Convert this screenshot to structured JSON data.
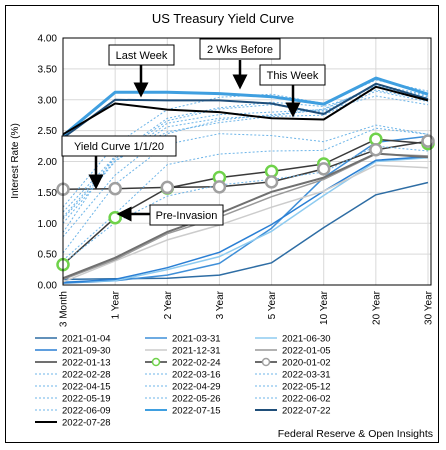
{
  "chart_data": {
    "type": "line",
    "title": "US Treasury Yield Curve",
    "xlabel": "",
    "ylabel": "Interest Rate (%)",
    "categories": [
      "3 Month",
      "1 Year",
      "2 Year",
      "3 Year",
      "5 Year",
      "10 Year",
      "20 Year",
      "30 Year"
    ],
    "ylim": [
      0,
      4
    ],
    "yticks": [
      "0.00",
      "0.50",
      "1.00",
      "1.50",
      "2.00",
      "2.50",
      "3.00",
      "3.50",
      "4.00"
    ],
    "grid": true,
    "legend": "bottom",
    "source": "Federal Reserve & Open Insights",
    "series": [
      {
        "name": "2021-01-04",
        "color": "#2e6da4",
        "style": "solid",
        "width": 1.5,
        "values": [
          0.09,
          0.1,
          0.11,
          0.16,
          0.36,
          0.93,
          1.46,
          1.66
        ]
      },
      {
        "name": "2021-03-31",
        "color": "#3f8fd8",
        "style": "solid",
        "width": 1.5,
        "values": [
          0.03,
          0.07,
          0.16,
          0.35,
          0.92,
          1.74,
          2.31,
          2.41
        ]
      },
      {
        "name": "2021-06-30",
        "color": "#8ecbf0",
        "style": "solid",
        "width": 1.5,
        "values": [
          0.05,
          0.07,
          0.25,
          0.46,
          0.87,
          1.45,
          2.0,
          2.06
        ]
      },
      {
        "name": "2021-09-30",
        "color": "#2a7fd4",
        "style": "solid",
        "width": 1.5,
        "values": [
          0.04,
          0.09,
          0.28,
          0.53,
          0.98,
          1.52,
          2.02,
          2.08
        ]
      },
      {
        "name": "2021-12-31",
        "color": "#cccccc",
        "style": "solid",
        "width": 1.5,
        "values": [
          0.05,
          0.39,
          0.73,
          0.97,
          1.26,
          1.52,
          1.94,
          1.9
        ]
      },
      {
        "name": "2022-01-05",
        "color": "#999999",
        "style": "solid",
        "width": 1.5,
        "values": [
          0.09,
          0.41,
          0.83,
          1.1,
          1.43,
          1.71,
          2.12,
          2.09
        ]
      },
      {
        "name": "2022-01-13",
        "color": "#707070",
        "style": "solid",
        "width": 2,
        "values": [
          0.11,
          0.44,
          0.86,
          1.16,
          1.51,
          1.74,
          2.13,
          2.07
        ]
      },
      {
        "name": "2022-02-24",
        "color": "#3a3a3a",
        "style": "solid",
        "width": 1.5,
        "marker": "circle-green",
        "values": [
          0.33,
          1.09,
          1.57,
          1.74,
          1.84,
          1.96,
          2.36,
          2.29
        ]
      },
      {
        "name": "2020-01-02",
        "color": "#3a3a3a",
        "style": "solid",
        "width": 1.5,
        "marker": "circle-grey",
        "values": [
          1.55,
          1.56,
          1.58,
          1.59,
          1.67,
          1.88,
          2.19,
          2.33
        ]
      },
      {
        "name": "2022-02-28",
        "color": "#6cb4e8",
        "style": "dotted",
        "width": 1,
        "values": [
          0.35,
          1.01,
          1.44,
          1.62,
          1.71,
          1.83,
          2.25,
          2.17
        ]
      },
      {
        "name": "2022-03-16",
        "color": "#6cb4e8",
        "style": "dotted",
        "width": 1,
        "values": [
          0.4,
          1.15,
          1.95,
          2.12,
          2.17,
          2.18,
          2.54,
          2.44
        ]
      },
      {
        "name": "2022-03-31",
        "color": "#6cb4e8",
        "style": "dotted",
        "width": 1,
        "values": [
          0.52,
          1.63,
          2.28,
          2.45,
          2.42,
          2.32,
          2.59,
          2.44
        ]
      },
      {
        "name": "2022-04-15",
        "color": "#6cb4e8",
        "style": "dotted",
        "width": 1,
        "values": [
          0.78,
          1.78,
          2.45,
          2.67,
          2.76,
          2.83,
          3.06,
          2.92
        ]
      },
      {
        "name": "2022-04-29",
        "color": "#6cb4e8",
        "style": "dotted",
        "width": 1,
        "values": [
          0.85,
          2.1,
          2.7,
          2.87,
          2.96,
          2.89,
          3.16,
          3.0
        ]
      },
      {
        "name": "2022-05-12",
        "color": "#6cb4e8",
        "style": "dotted",
        "width": 1,
        "values": [
          1.0,
          2.0,
          2.56,
          2.7,
          2.74,
          2.85,
          3.22,
          3.03
        ]
      },
      {
        "name": "2022-05-19",
        "color": "#6cb4e8",
        "style": "dotted",
        "width": 1,
        "values": [
          1.07,
          2.01,
          2.62,
          2.76,
          2.8,
          2.84,
          3.23,
          3.05
        ]
      },
      {
        "name": "2022-05-26",
        "color": "#6cb4e8",
        "style": "dotted",
        "width": 1,
        "values": [
          1.1,
          2.05,
          2.48,
          2.63,
          2.73,
          2.75,
          3.14,
          2.97
        ]
      },
      {
        "name": "2022-06-02",
        "color": "#6cb4e8",
        "style": "dotted",
        "width": 1,
        "values": [
          1.18,
          2.08,
          2.66,
          2.85,
          2.92,
          2.8,
          3.25,
          3.07
        ]
      },
      {
        "name": "2022-06-09",
        "color": "#6cb4e8",
        "style": "dotted",
        "width": 1,
        "values": [
          1.26,
          2.27,
          2.84,
          3.04,
          3.09,
          2.94,
          3.32,
          3.14
        ]
      },
      {
        "name": "2022-07-15",
        "color": "#3f9fe0",
        "style": "solid",
        "width": 3,
        "values": [
          2.42,
          3.12,
          3.12,
          3.1,
          3.05,
          2.93,
          3.35,
          3.09
        ]
      },
      {
        "name": "2022-07-22",
        "color": "#1f4e79",
        "style": "solid",
        "width": 2,
        "values": [
          2.38,
          3.0,
          2.99,
          2.99,
          2.94,
          2.77,
          3.26,
          3.01
        ]
      },
      {
        "name": "2022-07-28",
        "color": "#000000",
        "style": "solid",
        "width": 2,
        "values": [
          2.44,
          2.94,
          2.84,
          2.8,
          2.7,
          2.68,
          3.21,
          2.99
        ]
      }
    ],
    "annotations": [
      "Last Week",
      "2 Wks Before",
      "This Week",
      "Yield Curve 1/1/20",
      "Pre-Invasion"
    ]
  }
}
